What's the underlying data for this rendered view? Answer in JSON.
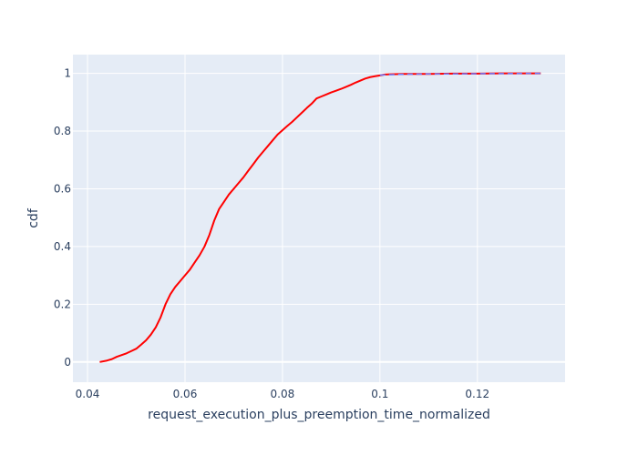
{
  "chart_data": {
    "type": "line",
    "xlabel": "request_execution_plus_preemption_time_normalized",
    "ylabel": "cdf",
    "xlim": [
      0.037,
      0.138
    ],
    "ylim": [
      -0.07,
      1.065
    ],
    "x_ticks": [
      0.04,
      0.06,
      0.08,
      0.1,
      0.12
    ],
    "x_tick_labels": [
      "0.04",
      "0.06",
      "0.08",
      "0.1",
      "0.12"
    ],
    "y_ticks": [
      0,
      0.2,
      0.4,
      0.6,
      0.8,
      1
    ],
    "y_tick_labels": [
      "0",
      "0.2",
      "0.4",
      "0.6",
      "0.8",
      "1"
    ],
    "grid": true,
    "legend": "none",
    "colors": {
      "plot_background": "#e5ecf6",
      "grid": "#ffffff",
      "series_main": "#ff0000",
      "series_overlay": "#6b7bff"
    },
    "series": [
      {
        "color": "#ff0000",
        "x": [
          0.0425,
          0.044,
          0.045,
          0.046,
          0.047,
          0.048,
          0.049,
          0.05,
          0.051,
          0.052,
          0.053,
          0.054,
          0.055,
          0.056,
          0.057,
          0.058,
          0.059,
          0.06,
          0.061,
          0.062,
          0.063,
          0.064,
          0.065,
          0.066,
          0.067,
          0.068,
          0.069,
          0.07,
          0.071,
          0.072,
          0.073,
          0.074,
          0.075,
          0.076,
          0.077,
          0.078,
          0.079,
          0.08,
          0.081,
          0.082,
          0.083,
          0.084,
          0.085,
          0.086,
          0.087,
          0.088,
          0.089,
          0.09,
          0.091,
          0.092,
          0.093,
          0.094,
          0.095,
          0.096,
          0.097,
          0.098,
          0.099,
          0.1,
          0.101,
          0.102,
          0.105,
          0.11,
          0.115,
          0.12,
          0.125,
          0.13,
          0.133
        ],
        "y": [
          0.0,
          0.005,
          0.01,
          0.018,
          0.024,
          0.03,
          0.038,
          0.046,
          0.06,
          0.075,
          0.095,
          0.12,
          0.155,
          0.2,
          0.235,
          0.26,
          0.28,
          0.3,
          0.32,
          0.345,
          0.37,
          0.4,
          0.44,
          0.49,
          0.53,
          0.555,
          0.58,
          0.6,
          0.62,
          0.64,
          0.663,
          0.685,
          0.708,
          0.728,
          0.748,
          0.768,
          0.788,
          0.803,
          0.818,
          0.832,
          0.848,
          0.864,
          0.88,
          0.895,
          0.913,
          0.92,
          0.927,
          0.934,
          0.94,
          0.946,
          0.953,
          0.96,
          0.968,
          0.975,
          0.982,
          0.987,
          0.99,
          0.993,
          0.996,
          0.997,
          0.998,
          0.998,
          0.999,
          0.999,
          1.0,
          1.0,
          1.0
        ]
      },
      {
        "color": "#6b7bff",
        "dash": true,
        "x": [
          0.1,
          0.105,
          0.11,
          0.115,
          0.12,
          0.125,
          0.13,
          0.133
        ],
        "y": [
          0.994,
          0.997,
          0.998,
          0.998,
          0.999,
          0.999,
          1.0,
          1.0
        ]
      }
    ]
  }
}
